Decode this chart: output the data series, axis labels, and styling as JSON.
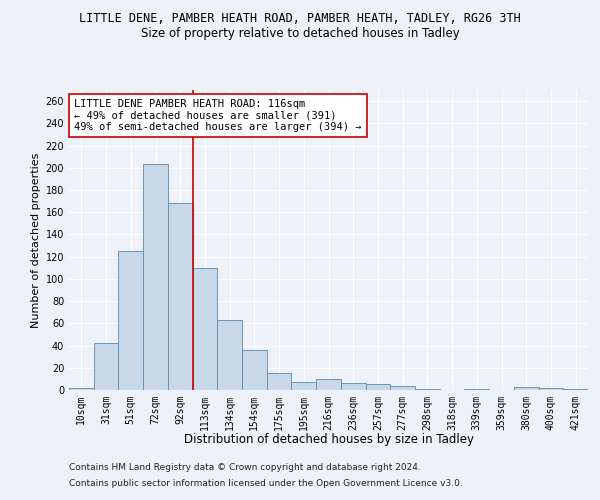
{
  "title_line1": "LITTLE DENE, PAMBER HEATH ROAD, PAMBER HEATH, TADLEY, RG26 3TH",
  "title_line2": "Size of property relative to detached houses in Tadley",
  "xlabel": "Distribution of detached houses by size in Tadley",
  "ylabel": "Number of detached properties",
  "categories": [
    "10sqm",
    "31sqm",
    "51sqm",
    "72sqm",
    "92sqm",
    "113sqm",
    "134sqm",
    "154sqm",
    "175sqm",
    "195sqm",
    "216sqm",
    "236sqm",
    "257sqm",
    "277sqm",
    "298sqm",
    "318sqm",
    "339sqm",
    "359sqm",
    "380sqm",
    "400sqm",
    "421sqm"
  ],
  "values": [
    2,
    42,
    125,
    203,
    168,
    110,
    63,
    36,
    15,
    7,
    10,
    6,
    5,
    4,
    1,
    0,
    1,
    0,
    3,
    2,
    1
  ],
  "bar_color": "#c8d8e8",
  "bar_edge_color": "#5a8ab0",
  "vline_x_index": 4.5,
  "vline_color": "#cc0000",
  "annotation_text": "LITTLE DENE PAMBER HEATH ROAD: 116sqm\n← 49% of detached houses are smaller (391)\n49% of semi-detached houses are larger (394) →",
  "annotation_box_edge": "#cc0000",
  "ylim": [
    0,
    270
  ],
  "yticks": [
    0,
    20,
    40,
    60,
    80,
    100,
    120,
    140,
    160,
    180,
    200,
    220,
    240,
    260
  ],
  "footer_line1": "Contains HM Land Registry data © Crown copyright and database right 2024.",
  "footer_line2": "Contains public sector information licensed under the Open Government Licence v3.0.",
  "background_color": "#eef2f8",
  "grid_color": "#ffffff",
  "title_fontsize": 8.5,
  "subtitle_fontsize": 8.5,
  "xlabel_fontsize": 8.5,
  "ylabel_fontsize": 8.0,
  "tick_fontsize": 7.0,
  "annotation_fontsize": 7.5,
  "footer_fontsize": 6.5
}
